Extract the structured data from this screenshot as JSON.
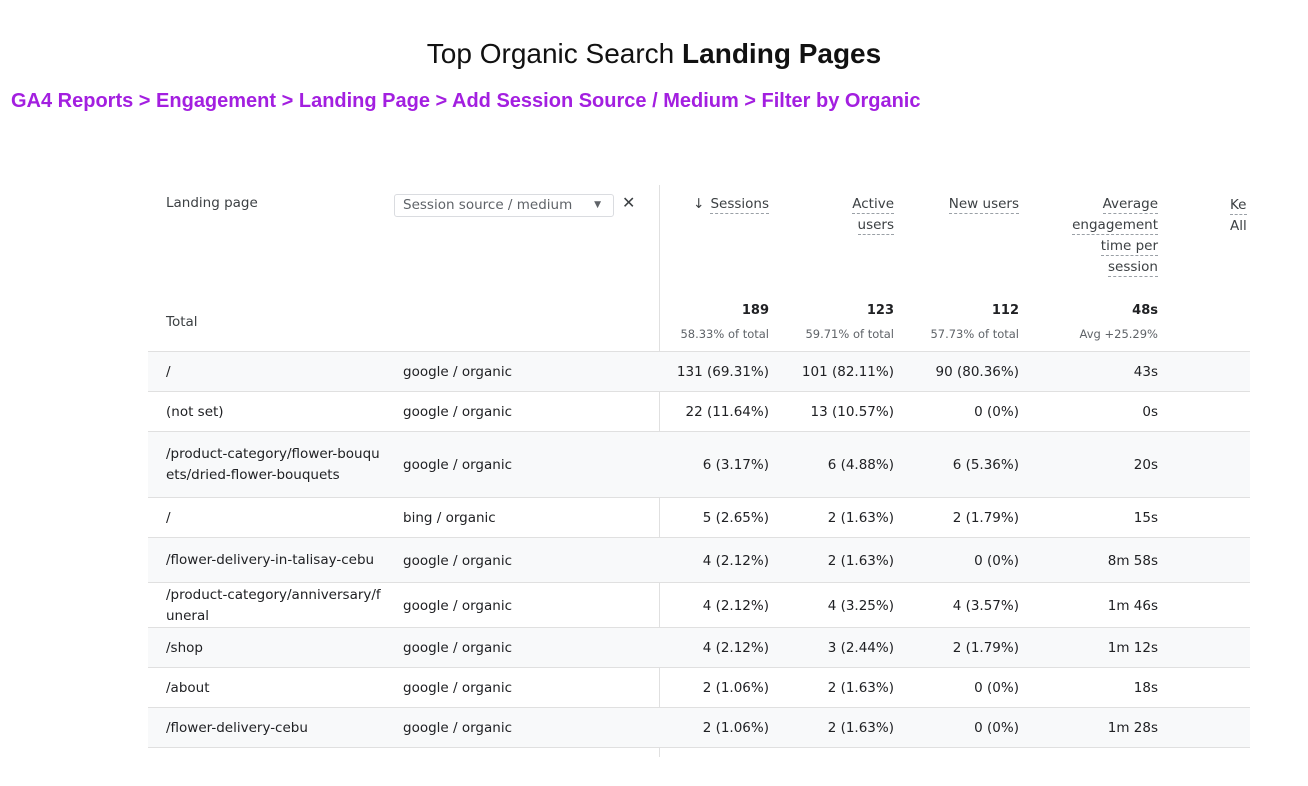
{
  "title": {
    "normal": "Top Organic Search ",
    "bold": "Landing Pages"
  },
  "breadcrumb": "GA4 Reports > Engagement > Landing Page > Add Session Source / Medium > Filter by Organic",
  "table": {
    "landing_header": "Landing page",
    "dimension_select": "Session source / medium",
    "metric_headers": {
      "sessions": "Sessions",
      "active_users": [
        "Active",
        "users"
      ],
      "new_users": "New users",
      "avg_engagement": [
        "Average",
        "engagement",
        "time per",
        "session"
      ],
      "cut_column": [
        "Ke",
        "All e"
      ]
    },
    "total_label": "Total",
    "totals": {
      "sessions": {
        "value": "189",
        "sub": "58.33% of total"
      },
      "active_users": {
        "value": "123",
        "sub": "59.71% of total"
      },
      "new_users": {
        "value": "112",
        "sub": "57.73% of total"
      },
      "avg_engagement": {
        "value": "48s",
        "sub": "Avg +25.29%"
      }
    },
    "rows": [
      {
        "page": "/",
        "source": "google / organic",
        "sessions": "131 (69.31%)",
        "active_users": "101 (82.11%)",
        "new_users": "90 (80.36%)",
        "avg": "43s"
      },
      {
        "page": "(not set)",
        "source": "google / organic",
        "sessions": "22 (11.64%)",
        "active_users": "13 (10.57%)",
        "new_users": "0 (0%)",
        "avg": "0s"
      },
      {
        "page": "/product-category/flower-bouquets/dried-flower-bouquets",
        "source": "google / organic",
        "sessions": "6 (3.17%)",
        "active_users": "6 (4.88%)",
        "new_users": "6 (5.36%)",
        "avg": "20s"
      },
      {
        "page": "/",
        "source": "bing / organic",
        "sessions": "5 (2.65%)",
        "active_users": "2 (1.63%)",
        "new_users": "2 (1.79%)",
        "avg": "15s"
      },
      {
        "page": "/flower-delivery-in-talisay-cebu",
        "source": "google / organic",
        "sessions": "4 (2.12%)",
        "active_users": "2 (1.63%)",
        "new_users": "0 (0%)",
        "avg": "8m 58s"
      },
      {
        "page": "/product-category/anniversary/funeral",
        "source": "google / organic",
        "sessions": "4 (2.12%)",
        "active_users": "4 (3.25%)",
        "new_users": "4 (3.57%)",
        "avg": "1m 46s"
      },
      {
        "page": "/shop",
        "source": "google / organic",
        "sessions": "4 (2.12%)",
        "active_users": "3 (2.44%)",
        "new_users": "2 (1.79%)",
        "avg": "1m 12s"
      },
      {
        "page": "/about",
        "source": "google / organic",
        "sessions": "2 (1.06%)",
        "active_users": "2 (1.63%)",
        "new_users": "0 (0%)",
        "avg": "18s"
      },
      {
        "page": "/flower-delivery-cebu",
        "source": "google / organic",
        "sessions": "2 (1.06%)",
        "active_users": "2 (1.63%)",
        "new_users": "0 (0%)",
        "avg": "1m 28s"
      }
    ]
  }
}
